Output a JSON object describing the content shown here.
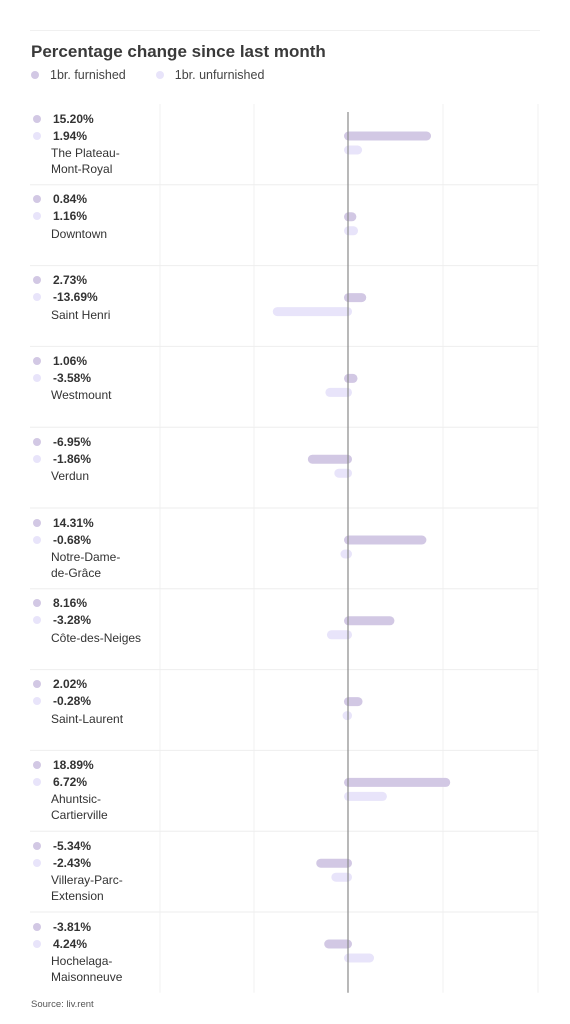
{
  "chart_data": {
    "type": "bar",
    "orientation": "horizontal",
    "title": "Percentage change since last month",
    "categories": [
      "The Plateau-\nMont-Royal",
      "Downtown",
      "Saint Henri",
      "Westmount",
      "Verdun",
      "Notre-Dame-\nde-Grâce",
      "Côte-des-Neiges",
      "Saint-Laurent",
      "Ahuntsic-\nCartierville",
      "Villeray-Parc-\nExtension",
      "Hochelaga-\nMaisonneuve"
    ],
    "series": [
      {
        "name": "1br. furnished",
        "color": "#d2c8e4",
        "values": [
          15.2,
          0.84,
          2.73,
          1.06,
          -6.95,
          14.31,
          8.16,
          2.02,
          18.89,
          -5.34,
          -3.81
        ],
        "labels": [
          "15.20%",
          "0.84%",
          "2.73%",
          "1.06%",
          "-6.95%",
          "14.31%",
          "8.16%",
          "2.02%",
          "18.89%",
          "-5.34%",
          "-3.81%"
        ]
      },
      {
        "name": "1br. unfurnished",
        "color": "#e8e4fa",
        "values": [
          1.94,
          1.16,
          -13.69,
          -3.58,
          -1.86,
          -0.68,
          -3.28,
          -0.28,
          6.72,
          -2.43,
          4.24
        ],
        "labels": [
          "1.94%",
          "1.16%",
          "-13.69%",
          "-3.58%",
          "-1.86%",
          "-0.68%",
          "-3.28%",
          "-0.28%",
          "6.72%",
          "-2.43%",
          "4.24%"
        ]
      }
    ],
    "xlim": [
      -40,
      40
    ],
    "grid": true,
    "legend": "top-left",
    "source": "Source: liv.rent"
  }
}
